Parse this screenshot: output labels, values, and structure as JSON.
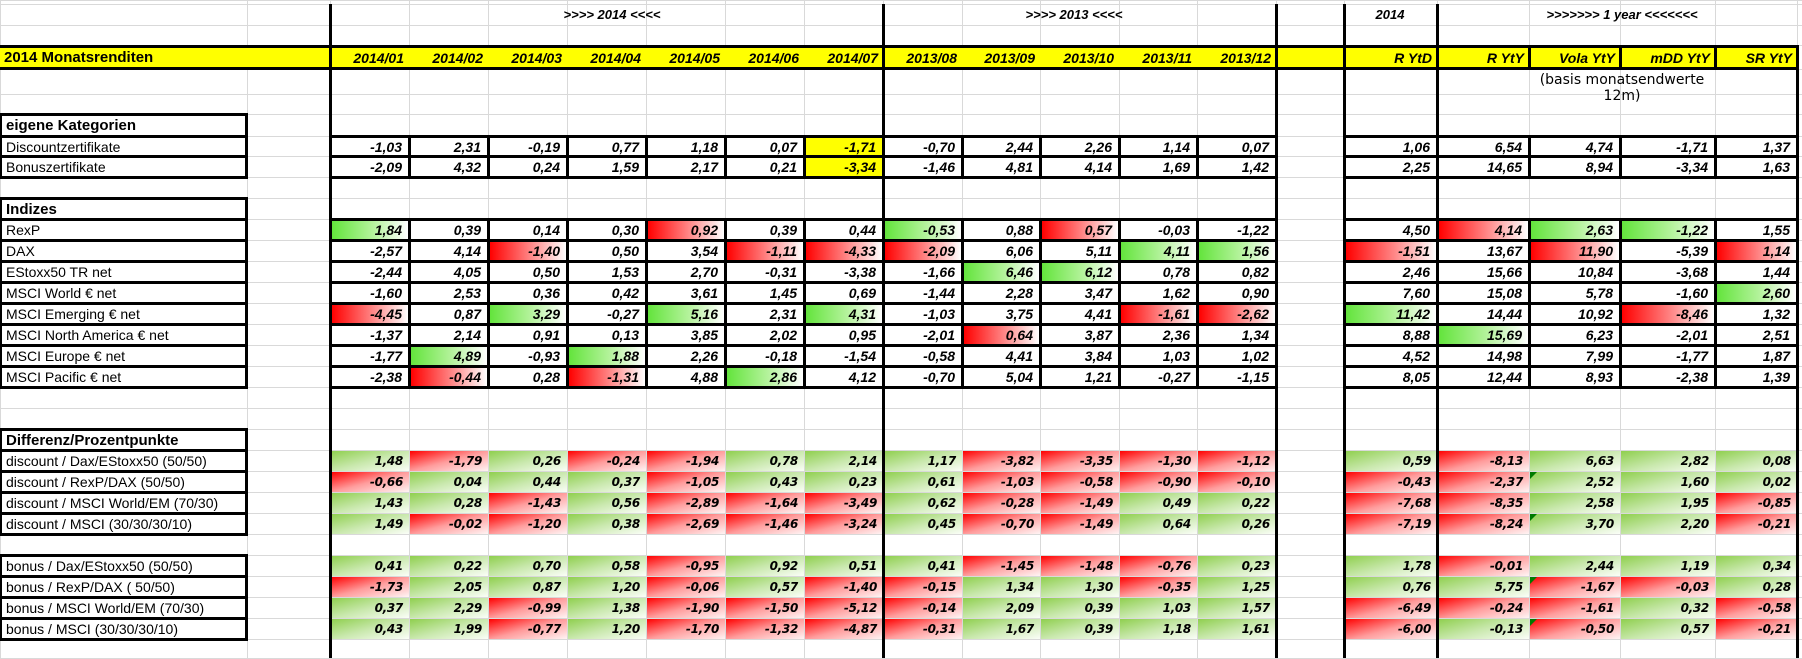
{
  "header": {
    "group_2014": ">>>> 2014 <<<<",
    "group_2013": ">>>>  2013  <<<<",
    "group_ytd": "2014",
    "group_1year": ">>>>>>> 1 year <<<<<<<",
    "title": "2014 Monatsrenditen",
    "columns": [
      "2014/01",
      "2014/02",
      "2014/03",
      "2014/04",
      "2014/05",
      "2014/06",
      "2014/07",
      "2013/08",
      "2013/09",
      "2013/10",
      "2013/11",
      "2013/12",
      "R YtD",
      "R YtY",
      "Vola YtY",
      "mDD YtY",
      "SR YtY"
    ],
    "note": "(basis monatsendwerte 12m)"
  },
  "colors": {
    "highlight_yellow": "#ffff00",
    "positive_green": "#63e43c",
    "negative_red": "#ff0000",
    "diff_green": "#8fcf4e"
  },
  "sections": [
    {
      "title": "eigene Kategorien",
      "style": "bar",
      "rows": [
        {
          "label": "Discountzertifikate",
          "values": [
            "-1,03",
            "2,31",
            "-0,19",
            "0,77",
            "1,18",
            "0,07",
            "-1,71",
            "-0,70",
            "2,44",
            "2,26",
            "1,14",
            "0,07",
            "1,06",
            "6,54",
            "4,74",
            "-1,71",
            "1,37"
          ],
          "fills": "......y.........."
        },
        {
          "label": "Bonuszertifikate",
          "values": [
            "-2,09",
            "4,32",
            "0,24",
            "1,59",
            "2,17",
            "0,21",
            "-3,34",
            "-1,46",
            "4,81",
            "4,14",
            "1,69",
            "1,42",
            "2,25",
            "14,65",
            "8,94",
            "-3,34",
            "1,63"
          ],
          "fills": "......y.........."
        }
      ]
    },
    {
      "title": "Indizes",
      "style": "bar",
      "rows": [
        {
          "label": "RexP",
          "values": [
            "1,84",
            "0,39",
            "0,14",
            "0,30",
            "0,92",
            "0,39",
            "0,44",
            "-0,53",
            "0,88",
            "0,57",
            "-0,03",
            "-1,22",
            "4,50",
            "4,14",
            "2,63",
            "-1,22",
            "1,55"
          ],
          "fills": "g...r..g.r...rgg."
        },
        {
          "label": "DAX",
          "values": [
            "-2,57",
            "4,14",
            "-1,40",
            "0,50",
            "3,54",
            "-1,11",
            "-4,33",
            "-2,09",
            "6,06",
            "5,11",
            "4,11",
            "1,56",
            "-1,51",
            "13,67",
            "11,90",
            "-5,39",
            "1,14"
          ],
          "fills": "..r..rrr..ggr.r.r"
        },
        {
          "label": "EStoxx50 TR net",
          "values": [
            "-2,44",
            "4,05",
            "0,50",
            "1,53",
            "2,70",
            "-0,31",
            "-3,38",
            "-1,66",
            "6,46",
            "6,12",
            "0,78",
            "0,82",
            "2,46",
            "15,66",
            "10,84",
            "-3,68",
            "1,44"
          ],
          "fills": "........gg......."
        },
        {
          "label": "MSCI World € net",
          "values": [
            "-1,60",
            "2,53",
            "0,36",
            "0,42",
            "3,61",
            "1,45",
            "0,69",
            "-1,44",
            "2,28",
            "3,47",
            "1,62",
            "0,90",
            "7,60",
            "15,08",
            "5,78",
            "-1,60",
            "2,60"
          ],
          "fills": "................g"
        },
        {
          "label": "MSCI Emerging € net",
          "values": [
            "-4,45",
            "0,87",
            "3,29",
            "-0,27",
            "5,16",
            "2,31",
            "4,31",
            "-1,03",
            "3,75",
            "4,41",
            "-1,61",
            "-2,62",
            "11,42",
            "14,44",
            "10,92",
            "-8,46",
            "1,32"
          ],
          "fills": "r.g.g.g...rrg..r."
        },
        {
          "label": "MSCI North America € net",
          "values": [
            "-1,37",
            "2,14",
            "0,91",
            "0,13",
            "3,85",
            "2,02",
            "0,95",
            "-2,01",
            "0,64",
            "3,87",
            "2,36",
            "1,34",
            "8,88",
            "15,69",
            "6,23",
            "-2,01",
            "2,51"
          ],
          "fills": "........r....g..."
        },
        {
          "label": "MSCI Europe € net",
          "values": [
            "-1,77",
            "4,89",
            "-0,93",
            "1,88",
            "2,26",
            "-0,18",
            "-1,54",
            "-0,58",
            "4,41",
            "3,84",
            "1,03",
            "1,02",
            "4,52",
            "14,98",
            "7,99",
            "-1,77",
            "1,87"
          ],
          "fills": ".g.g............."
        },
        {
          "label": "MSCI Pacific € net",
          "values": [
            "-2,38",
            "-0,44",
            "0,28",
            "-1,31",
            "4,88",
            "2,86",
            "4,12",
            "-0,70",
            "5,04",
            "1,21",
            "-0,27",
            "-1,15",
            "8,05",
            "12,44",
            "8,93",
            "-2,38",
            "1,39"
          ],
          "fills": ".r.r.g..........."
        }
      ]
    },
    {
      "title": "Differenz/Prozentpunkte",
      "style": "diff",
      "rows": [
        {
          "label": "discount / Dax/EStoxx50 (50/50)",
          "values": [
            "1,48",
            "-1,79",
            "0,26",
            "-0,24",
            "-1,94",
            "0,78",
            "2,14",
            "1,17",
            "-3,82",
            "-3,35",
            "-1,30",
            "-1,12",
            "0,59",
            "-8,13",
            "6,63",
            "2,82",
            "0,08"
          ],
          "fills": "grgrrgggrrrrgrggg"
        },
        {
          "label": "discount / RexP/DAX (50/50)",
          "values": [
            "-0,66",
            "0,04",
            "0,44",
            "0,37",
            "-1,05",
            "0,43",
            "0,23",
            "0,61",
            "-1,03",
            "-0,58",
            "-0,90",
            "-0,10",
            "-0,43",
            "-2,37",
            "2,52",
            "1,60",
            "0,02"
          ],
          "fills": "rgggrgggrrrrrrggg",
          "flagged": [
            14
          ]
        },
        {
          "label": "discount / MSCI World/EM (70/30)",
          "values": [
            "1,43",
            "0,28",
            "-1,43",
            "0,56",
            "-2,89",
            "-1,64",
            "-3,49",
            "0,62",
            "-0,28",
            "-1,49",
            "0,49",
            "0,22",
            "-7,68",
            "-8,35",
            "2,58",
            "1,95",
            "-0,85"
          ],
          "fills": "ggrgrrrgrrggrrggr"
        },
        {
          "label": "discount / MSCI (30/30/30/10)",
          "values": [
            "1,49",
            "-0,02",
            "-1,20",
            "0,38",
            "-2,69",
            "-1,46",
            "-3,24",
            "0,45",
            "-0,70",
            "-1,49",
            "0,64",
            "0,26",
            "-7,19",
            "-8,24",
            "3,70",
            "2,20",
            "-0,21"
          ],
          "fills": "grrgrrrgrrggrrggr",
          "flagged": [
            14
          ]
        }
      ]
    },
    {
      "title": "",
      "style": "diff",
      "rows": [
        {
          "label": "bonus / Dax/EStoxx50 (50/50)",
          "values": [
            "0,41",
            "0,22",
            "0,70",
            "0,58",
            "-0,95",
            "0,92",
            "0,51",
            "0,41",
            "-1,45",
            "-1,48",
            "-0,76",
            "0,23",
            "1,78",
            "-0,01",
            "2,44",
            "1,19",
            "0,34"
          ],
          "fills": "ggggrgggrrrggrggg"
        },
        {
          "label": "bonus / RexP/DAX ( 50/50)",
          "values": [
            "-1,73",
            "2,05",
            "0,87",
            "1,20",
            "-0,06",
            "0,57",
            "-1,40",
            "-0,15",
            "1,34",
            "1,30",
            "-0,35",
            "1,25",
            "0,76",
            "5,75",
            "-1,67",
            "-0,03",
            "0,28"
          ],
          "fills": "rgggrgrrggrgggrrg",
          "flagged": [
            14
          ]
        },
        {
          "label": "bonus / MSCI World/EM (70/30)",
          "values": [
            "0,37",
            "2,29",
            "-0,99",
            "1,38",
            "-1,90",
            "-1,50",
            "-5,12",
            "-0,14",
            "2,09",
            "0,39",
            "1,03",
            "1,57",
            "-6,49",
            "-0,24",
            "-1,61",
            "0,32",
            "-0,58"
          ],
          "fills": "ggrgrrrrggggrrrgr"
        },
        {
          "label": "bonus / MSCI (30/30/30/10)",
          "values": [
            "0,43",
            "1,99",
            "-0,77",
            "1,20",
            "-1,70",
            "-1,32",
            "-4,87",
            "-0,31",
            "1,67",
            "0,39",
            "1,18",
            "1,61",
            "-6,00",
            "-0,13",
            "-0,50",
            "0,57",
            "-0,21"
          ],
          "fills": "ggrgrrrrggggrgrgr",
          "flagged": [
            14
          ]
        }
      ]
    }
  ]
}
